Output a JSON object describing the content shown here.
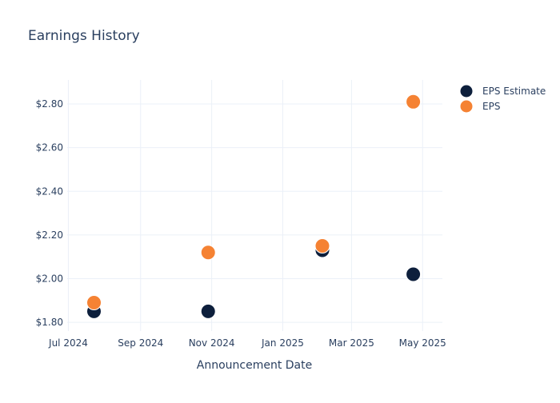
{
  "chart_data": {
    "type": "scatter",
    "title": "Earnings History",
    "xlabel": "Announcement Date",
    "ylabel": "",
    "x_type": "date",
    "xlim": [
      "2024-06-30",
      "2025-05-18"
    ],
    "ylim": [
      1.76,
      2.91
    ],
    "x_ticks": [
      {
        "date": "2024-07-01",
        "label": "Jul 2024"
      },
      {
        "date": "2024-09-01",
        "label": "Sep 2024"
      },
      {
        "date": "2024-11-01",
        "label": "Nov 2024"
      },
      {
        "date": "2025-01-01",
        "label": "Jan 2025"
      },
      {
        "date": "2025-03-01",
        "label": "Mar 2025"
      },
      {
        "date": "2025-05-01",
        "label": "May 2025"
      }
    ],
    "y_ticks": [
      {
        "value": 1.8,
        "label": "$1.80"
      },
      {
        "value": 2.0,
        "label": "$2.00"
      },
      {
        "value": 2.2,
        "label": "$2.20"
      },
      {
        "value": 2.4,
        "label": "$2.40"
      },
      {
        "value": 2.6,
        "label": "$2.60"
      },
      {
        "value": 2.8,
        "label": "$2.80"
      }
    ],
    "grid": true,
    "legend_position": "top-right",
    "x": [
      "2024-07-23",
      "2024-10-29",
      "2025-02-04",
      "2025-04-23"
    ],
    "series": [
      {
        "name": "EPS Estimate",
        "color": "#0d1f3c",
        "values": [
          1.85,
          1.85,
          2.13,
          2.02
        ]
      },
      {
        "name": "EPS",
        "color": "#f58233",
        "values": [
          1.89,
          2.12,
          2.15,
          2.81
        ]
      }
    ]
  }
}
